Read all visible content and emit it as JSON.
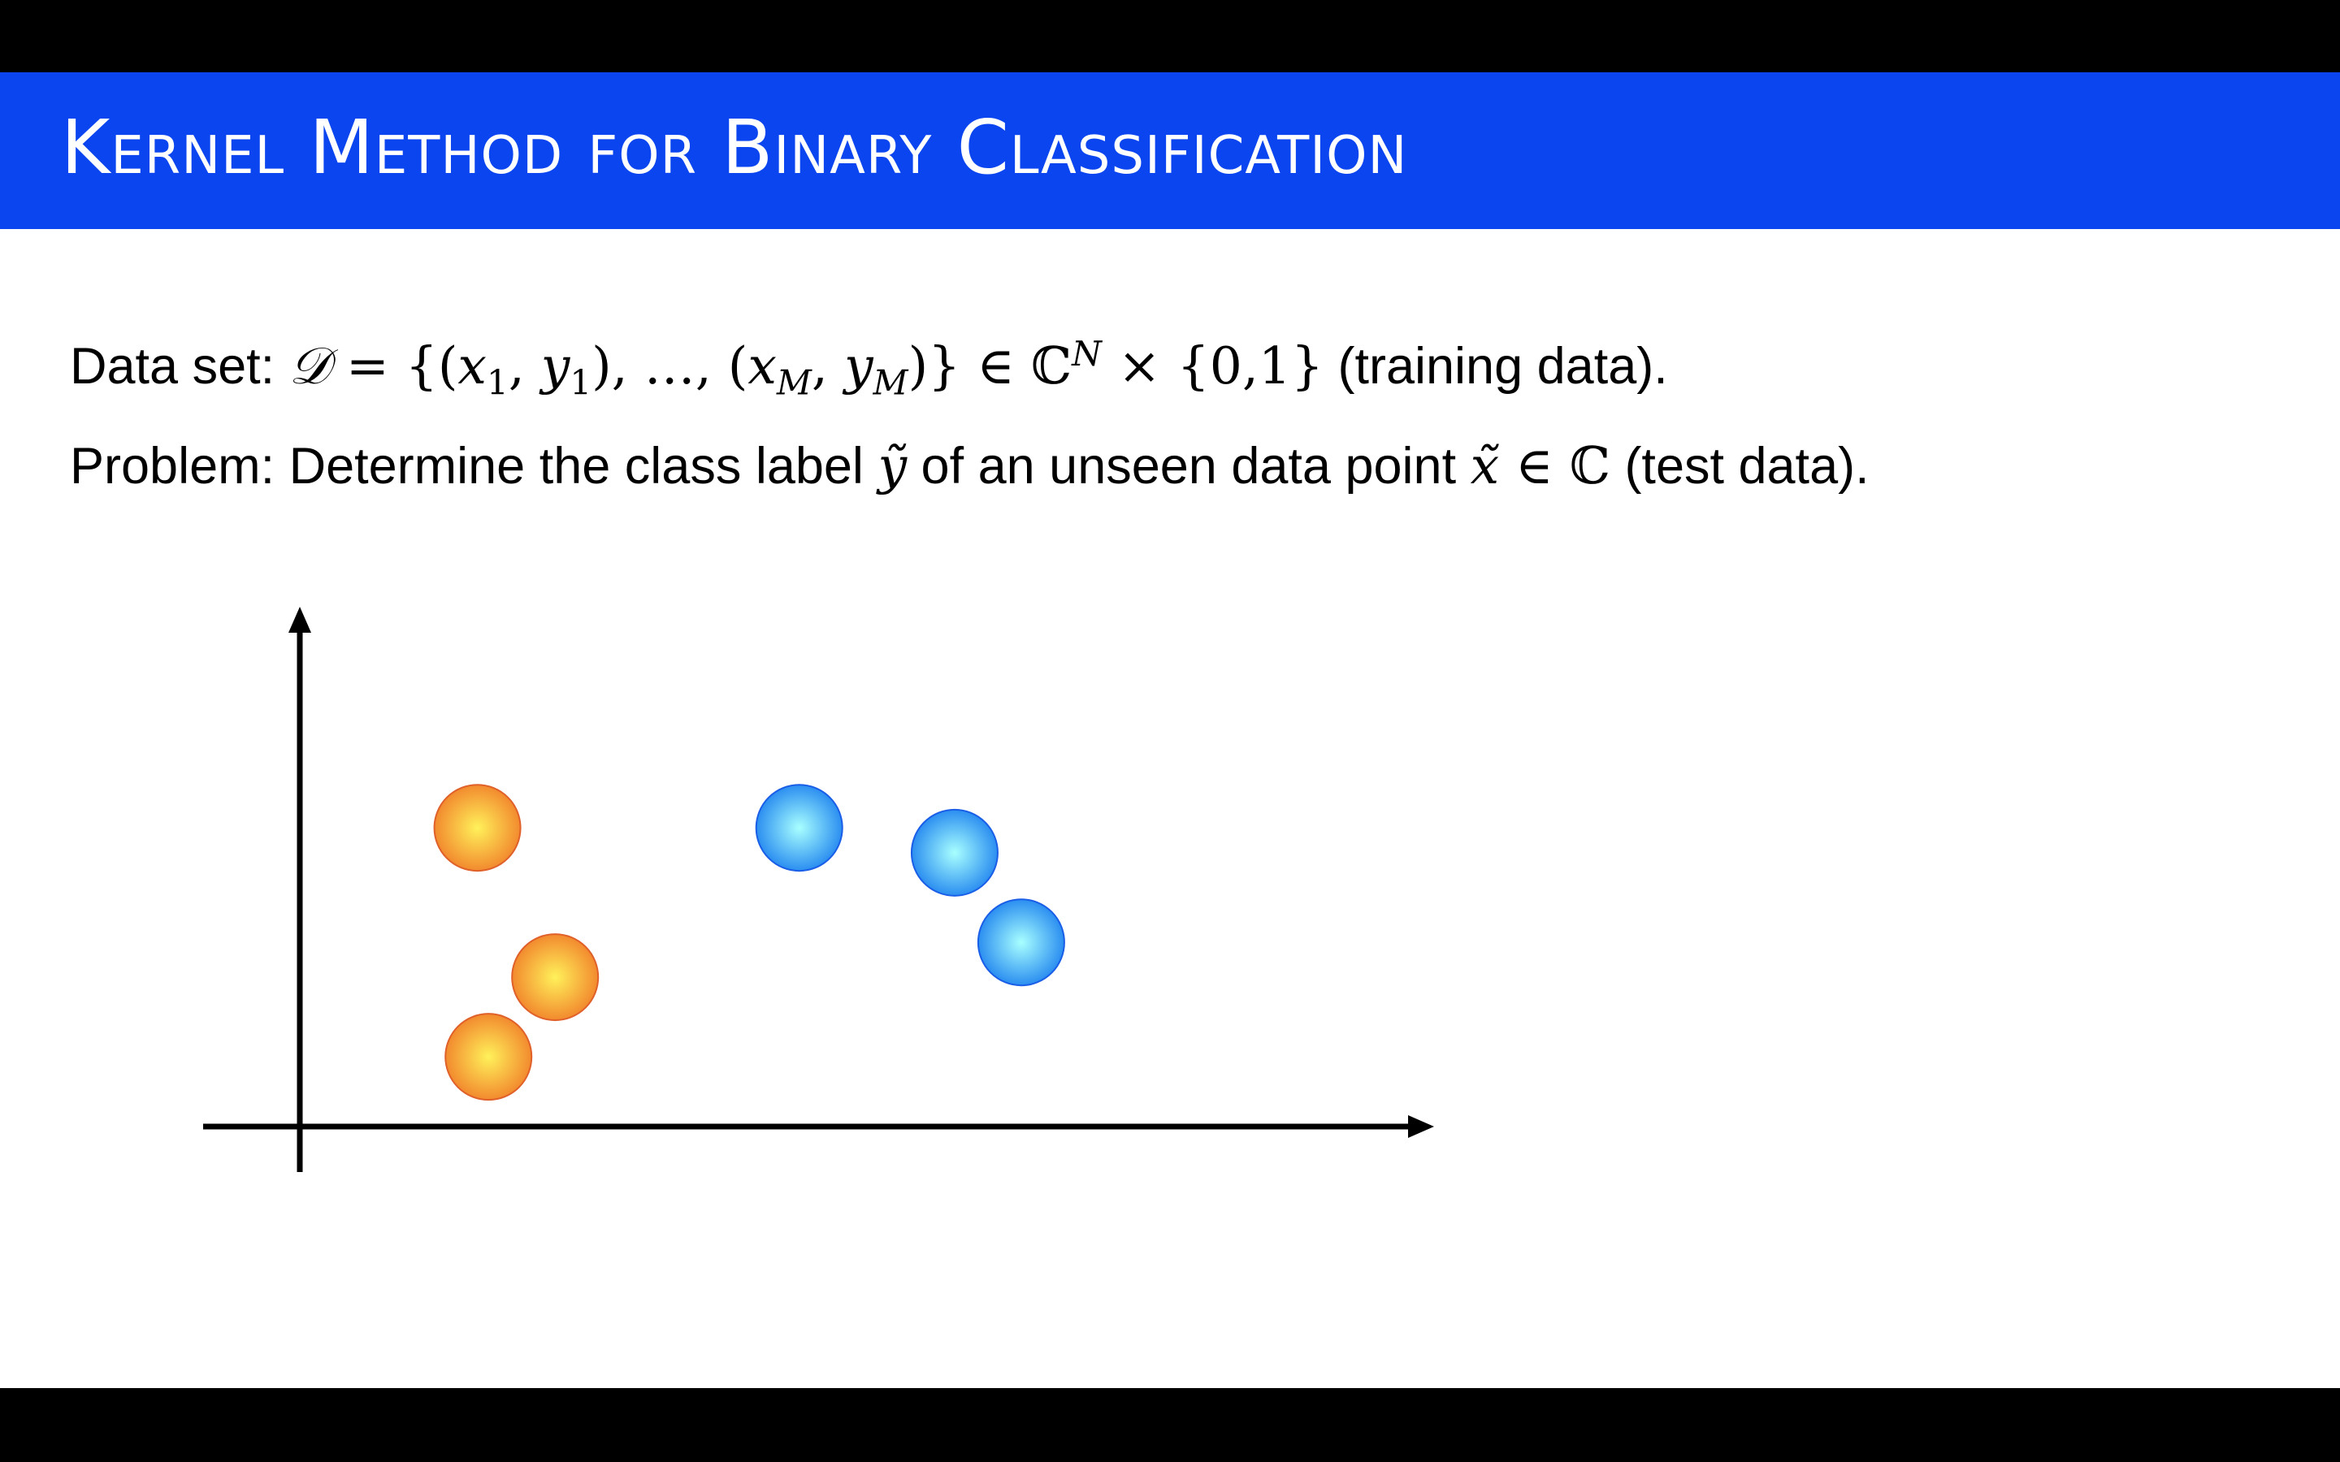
{
  "slide": {
    "title": "Kernel Method for Binary Classification",
    "dataset": {
      "label": "Data set: ",
      "math_set": "𝒟",
      "math_eq": " = {(",
      "x1": "x",
      "x1_sub": "1",
      "comma1": ", ",
      "y1": "y",
      "y1_sub": "1",
      "mid": "), …, (",
      "xm": "x",
      "xm_sub": "M",
      "comma2": ", ",
      "ym": "y",
      "ym_sub": "M",
      "close": ")} ∈ ℂ",
      "sup": "N",
      "times": " × {0,1}",
      "suffix": " (training data)."
    },
    "problem": {
      "label": "Problem: Determine the class label ",
      "ytilde": "ỹ",
      "mid": " of an unseen data point ",
      "xtilde": "x̃",
      "in": " ∈ ℂ",
      "suffix": " (test data)."
    }
  },
  "colors": {
    "title_bar": "#0a45f0",
    "class_0": "#f28a2e",
    "class_1": "#2b8ef0"
  },
  "icons": {
    "x_axis": "arrow-right-icon",
    "y_axis": "arrow-up-icon"
  },
  "points": [
    {
      "class": 0,
      "x": 0.16,
      "y": 0.6
    },
    {
      "class": 0,
      "x": 0.23,
      "y": 0.3
    },
    {
      "class": 0,
      "x": 0.17,
      "y": 0.14
    },
    {
      "class": 1,
      "x": 0.45,
      "y": 0.6
    },
    {
      "class": 1,
      "x": 0.59,
      "y": 0.55
    },
    {
      "class": 1,
      "x": 0.65,
      "y": 0.37
    }
  ]
}
